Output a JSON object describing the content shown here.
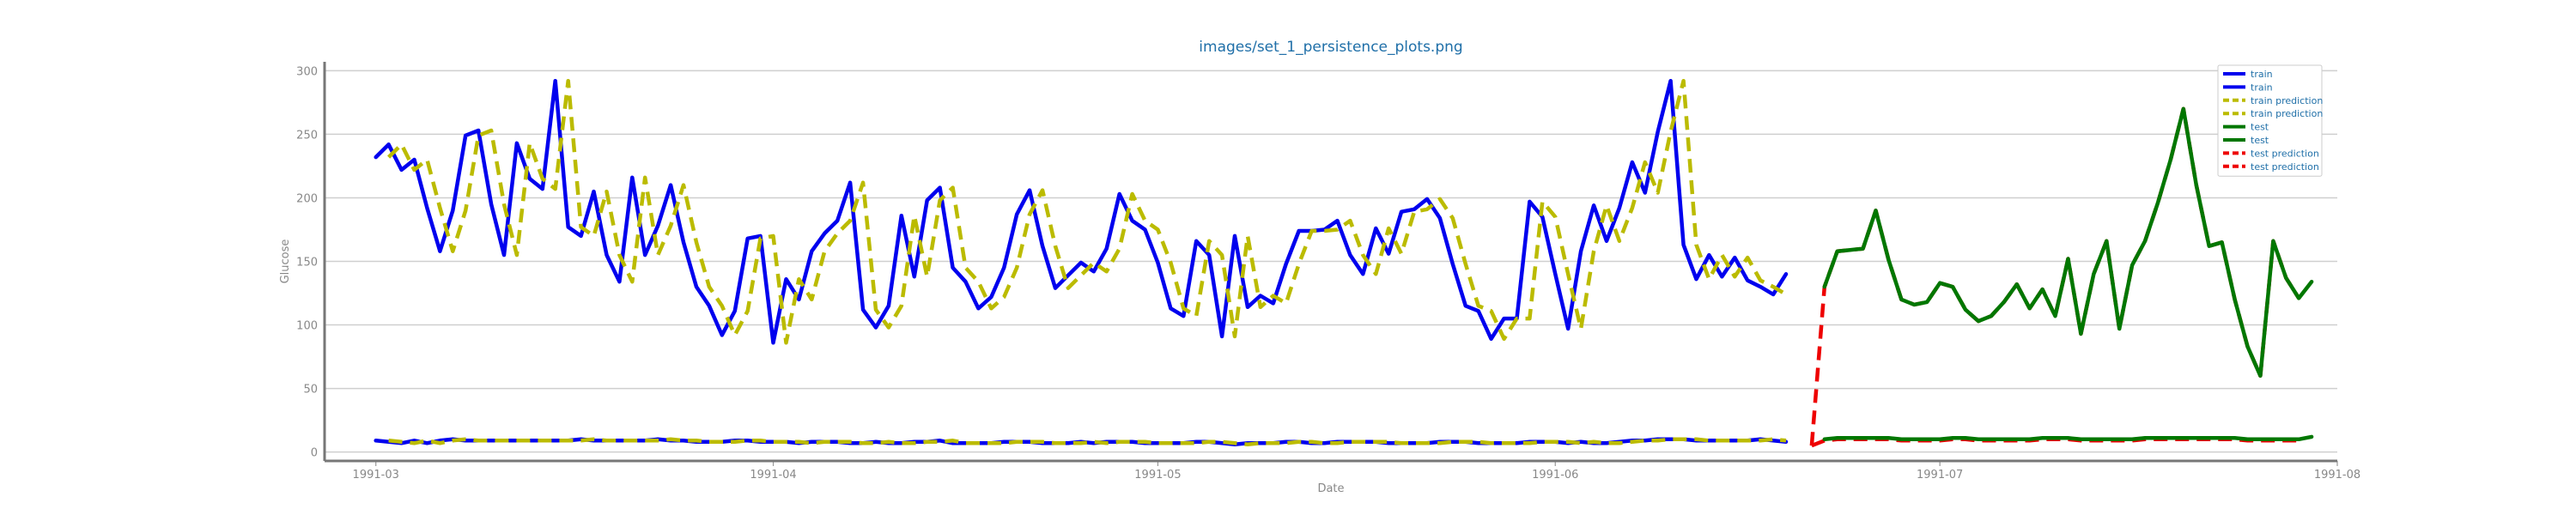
{
  "chart_data": {
    "type": "line",
    "title": "images/set_1_persistence_plots.png",
    "xlabel": "Date",
    "ylabel": "Glucose",
    "ylim": [
      -7,
      307
    ],
    "y_ticks": [
      0,
      50,
      100,
      150,
      200,
      250,
      300
    ],
    "x_ticks": [
      "1991-03",
      "1991-04",
      "1991-05",
      "1991-06",
      "1991-07",
      "1991-08"
    ],
    "xlim": [
      "1991-02-25",
      "1991-08-01"
    ],
    "grid": true,
    "legend_position": "upper-right",
    "colors": {
      "train": "#0000ee",
      "train_prediction": "#bbbb00",
      "test": "#007700",
      "test_prediction": "#ee0000"
    },
    "series": [
      {
        "name": "train",
        "color": "#0000ee",
        "dash": "solid",
        "start": "1991-03-01",
        "values": [
          232,
          242,
          222,
          230,
          192,
          158,
          190,
          249,
          253,
          195,
          155,
          243,
          215,
          207,
          292,
          177,
          170,
          205,
          155,
          134,
          216,
          155,
          178,
          210,
          165,
          130,
          115,
          92,
          111,
          168,
          170,
          86,
          136,
          120,
          158,
          172,
          182,
          212,
          112,
          98,
          115,
          186,
          138,
          198,
          208,
          145,
          134,
          113,
          122,
          145,
          187,
          206,
          162,
          129,
          139,
          149,
          142,
          160,
          203,
          182,
          175,
          149,
          113,
          107,
          166,
          155,
          91,
          170,
          114,
          123,
          117,
          148,
          174,
          174,
          175,
          182,
          155,
          140,
          176,
          156,
          189,
          191,
          199,
          184,
          148,
          115,
          111,
          89,
          105,
          105,
          197,
          185,
          140,
          97,
          158,
          194,
          166,
          192,
          228,
          204,
          252,
          292,
          163,
          136,
          155,
          138,
          153,
          135,
          130,
          124,
          140
        ],
        "level_values": [
          9,
          8,
          7,
          9,
          7,
          9,
          10,
          9,
          9,
          9,
          9,
          9,
          9,
          9,
          9,
          9,
          10,
          9,
          9,
          9,
          9,
          9,
          10,
          9,
          9,
          8,
          8,
          8,
          9,
          9,
          8,
          8,
          8,
          7,
          8,
          8,
          8,
          7,
          7,
          8,
          7,
          7,
          8,
          8,
          9,
          7,
          7,
          7,
          7,
          8,
          8,
          8,
          7,
          7,
          7,
          8,
          7,
          8,
          8,
          8,
          7,
          7,
          7,
          7,
          8,
          8,
          7,
          6,
          7,
          7,
          7,
          8,
          8,
          7,
          7,
          8,
          8,
          8,
          8,
          7,
          7,
          7,
          7,
          8,
          8,
          8,
          7,
          7,
          7,
          7,
          8,
          8,
          8,
          7,
          8,
          7,
          7,
          8,
          9,
          9,
          10,
          10,
          10,
          9,
          9,
          9,
          9,
          9,
          10,
          9,
          8
        ]
      },
      {
        "name": "train prediction",
        "color": "#bbbb00",
        "dash": "dashed",
        "start": "1991-03-02",
        "values": [
          232,
          242,
          222,
          230,
          192,
          158,
          190,
          249,
          253,
          195,
          155,
          243,
          215,
          207,
          292,
          177,
          170,
          205,
          155,
          134,
          216,
          155,
          178,
          210,
          165,
          130,
          115,
          92,
          111,
          168,
          170,
          86,
          136,
          120,
          158,
          172,
          182,
          212,
          112,
          98,
          115,
          186,
          138,
          198,
          208,
          145,
          134,
          113,
          122,
          145,
          187,
          206,
          162,
          129,
          139,
          149,
          142,
          160,
          203,
          182,
          175,
          149,
          113,
          107,
          166,
          155,
          91,
          170,
          114,
          123,
          117,
          148,
          174,
          174,
          175,
          182,
          155,
          140,
          176,
          156,
          189,
          191,
          199,
          184,
          148,
          115,
          111,
          89,
          105,
          105,
          197,
          185,
          140,
          97,
          158,
          194,
          166,
          192,
          228,
          204,
          252,
          292,
          163,
          136,
          155,
          138,
          153,
          135,
          130,
          124
        ],
        "level_values": [
          9,
          8,
          7,
          9,
          7,
          9,
          10,
          9,
          9,
          9,
          9,
          9,
          9,
          9,
          9,
          9,
          10,
          9,
          9,
          9,
          9,
          9,
          10,
          9,
          9,
          8,
          8,
          8,
          9,
          9,
          8,
          8,
          8,
          7,
          8,
          8,
          8,
          7,
          7,
          8,
          7,
          7,
          8,
          8,
          9,
          7,
          7,
          7,
          7,
          8,
          8,
          8,
          7,
          7,
          7,
          8,
          7,
          8,
          8,
          8,
          7,
          7,
          7,
          7,
          8,
          8,
          7,
          6,
          7,
          7,
          7,
          8,
          8,
          7,
          7,
          8,
          8,
          8,
          8,
          7,
          7,
          7,
          7,
          8,
          8,
          8,
          7,
          7,
          7,
          7,
          8,
          8,
          8,
          7,
          8,
          7,
          7,
          8,
          9,
          9,
          10,
          10,
          10,
          9,
          9,
          9,
          9,
          9,
          10,
          9
        ]
      },
      {
        "name": "test",
        "color": "#007700",
        "dash": "solid",
        "start": "1991-06-22",
        "values": [
          130,
          158,
          159,
          160,
          190,
          151,
          120,
          116,
          118,
          133,
          130,
          112,
          103,
          107,
          118,
          132,
          113,
          128,
          107,
          152,
          93,
          140,
          166,
          97,
          147,
          166,
          196,
          230,
          270,
          210,
          162,
          165,
          120,
          83,
          60,
          166,
          137,
          121,
          134
        ],
        "level_values": [
          10,
          11,
          11,
          11,
          11,
          11,
          10,
          10,
          10,
          10,
          11,
          11,
          10,
          10,
          10,
          10,
          10,
          11,
          11,
          11,
          10,
          10,
          10,
          10,
          10,
          11,
          11,
          11,
          11,
          11,
          11,
          11,
          11,
          10,
          10,
          10,
          10,
          10,
          12
        ]
      },
      {
        "name": "test prediction",
        "color": "#ee0000",
        "dash": "dashed",
        "start": "1991-06-21",
        "values": [
          5,
          130,
          158,
          159,
          160,
          190,
          151,
          120,
          116,
          118,
          133,
          130,
          112,
          103,
          107,
          118,
          132,
          113,
          128,
          107,
          152,
          93,
          140,
          166,
          97,
          147,
          166,
          196,
          230,
          270,
          210,
          162,
          165,
          120,
          83,
          60,
          166,
          137,
          121
        ],
        "level_values": [
          5,
          9,
          10,
          10,
          10,
          10,
          10,
          9,
          9,
          9,
          9,
          10,
          10,
          9,
          9,
          9,
          9,
          9,
          10,
          10,
          10,
          9,
          9,
          9,
          9,
          9,
          10,
          10,
          10,
          10,
          10,
          10,
          10,
          10,
          9,
          9,
          9,
          9,
          9
        ]
      }
    ]
  }
}
